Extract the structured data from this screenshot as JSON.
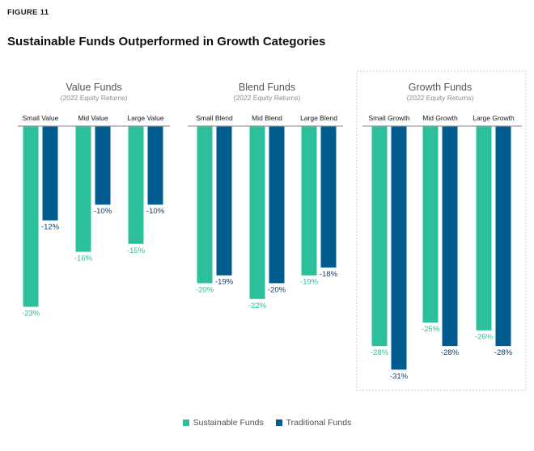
{
  "figure_label": "FIGURE 11",
  "title": "Sustainable Funds Outperformed in Growth Categories",
  "colors": {
    "sustainable": "#2bbf9c",
    "traditional": "#005b8f",
    "highlight_border": "#c8c8c8"
  },
  "chart_data": {
    "type": "bar",
    "title": "Sustainable Funds Outperformed in Growth Categories",
    "unit": "%",
    "ylim": [
      -31,
      0
    ],
    "legend_position": "bottom-center",
    "series": [
      {
        "name": "Sustainable Funds",
        "color": "#2bbf9c"
      },
      {
        "name": "Traditional Funds",
        "color": "#005b8f"
      }
    ],
    "groups": [
      {
        "name": "Value Funds",
        "subtitle": "(2022 Equity Returns)",
        "highlighted": false,
        "categories": [
          {
            "name": "Small Value",
            "values": [
              -23,
              -12
            ],
            "labels": [
              "-23%",
              "-12%"
            ]
          },
          {
            "name": "Mid Value",
            "values": [
              -16,
              -10
            ],
            "labels": [
              "-16%",
              "-10%"
            ]
          },
          {
            "name": "Large Value",
            "values": [
              -15,
              -10
            ],
            "labels": [
              "-15%",
              "-10%"
            ]
          }
        ]
      },
      {
        "name": "Blend Funds",
        "subtitle": "(2022 Equity Returns)",
        "highlighted": false,
        "categories": [
          {
            "name": "Small Blend",
            "values": [
              -20,
              -19
            ],
            "labels": [
              "-20%",
              "-19%"
            ]
          },
          {
            "name": "Mid Blend",
            "values": [
              -22,
              -20
            ],
            "labels": [
              "-22%",
              "-20%"
            ]
          },
          {
            "name": "Large Blend",
            "values": [
              -19,
              -18
            ],
            "labels": [
              "-19%",
              "-18%"
            ]
          }
        ]
      },
      {
        "name": "Growth Funds",
        "subtitle": "(2022 Equity Returns)",
        "highlighted": true,
        "categories": [
          {
            "name": "Small Growth",
            "values": [
              -28,
              -31
            ],
            "labels": [
              "-28%",
              "-31%"
            ]
          },
          {
            "name": "Mid Growth",
            "values": [
              -25,
              -28
            ],
            "labels": [
              "-25%",
              "-28%"
            ]
          },
          {
            "name": "Large Growth",
            "values": [
              -26,
              -28
            ],
            "labels": [
              "-26%",
              "-28%"
            ]
          }
        ]
      }
    ]
  }
}
